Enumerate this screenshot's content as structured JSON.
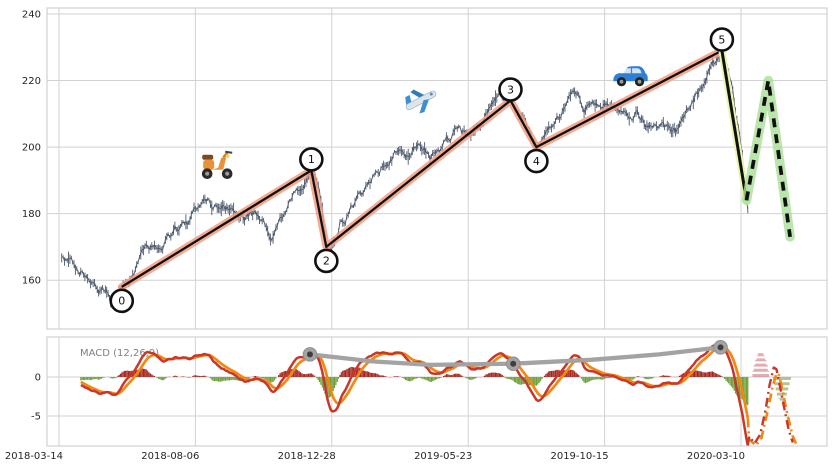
{
  "chart_data": {
    "type": "line",
    "title": "",
    "description": "Price chart with Elliott-wave style numbered pivots 0-5, salmon trend channel, green dashed forecast zigzag, vehicle emojis, and a MACD(12,26,9) subpanel with red MACD line, orange signal line, red/green histogram, gray peak-connector line with dots, and dash-dot forecast.",
    "x_axis": {
      "tick_labels": [
        "2018-03-14",
        "2018-08-06",
        "2018-12-28",
        "2019-05-23",
        "2019-10-15",
        "2020-03-10"
      ],
      "tick_days": [
        0,
        100,
        200,
        300,
        400,
        500
      ]
    },
    "main_y_ticks": [
      240,
      220,
      200,
      180,
      160
    ],
    "main_ylim": [
      145,
      241
    ],
    "macd": {
      "label": "MACD (12,26,9)",
      "params": [
        12,
        26,
        9
      ],
      "y_ticks": [
        0,
        -5
      ],
      "ylim": [
        -8.9,
        5
      ]
    },
    "wave_points": [
      {
        "label": "0",
        "day": 46,
        "value": 158,
        "kind": "trough"
      },
      {
        "label": "1",
        "day": 185,
        "value": 193,
        "kind": "peak"
      },
      {
        "label": "2",
        "day": 196,
        "value": 170,
        "kind": "trough"
      },
      {
        "label": "3",
        "day": 331,
        "value": 214,
        "kind": "peak"
      },
      {
        "label": "4",
        "day": 350,
        "value": 200,
        "kind": "trough"
      },
      {
        "label": "5",
        "day": 486,
        "value": 229,
        "kind": "peak"
      }
    ],
    "forecast_solid": [
      [
        486,
        229
      ],
      [
        504,
        184
      ]
    ],
    "forecast_dashed": [
      [
        504,
        184
      ],
      [
        520,
        220
      ],
      [
        536,
        173
      ]
    ],
    "price_anchors": [
      [
        2,
        166
      ],
      [
        8,
        164
      ],
      [
        14,
        162
      ],
      [
        20,
        161
      ],
      [
        26,
        159
      ],
      [
        32,
        158
      ],
      [
        38,
        156
      ],
      [
        42,
        155.5
      ],
      [
        46,
        158
      ],
      [
        52,
        162
      ],
      [
        58,
        166
      ],
      [
        63,
        170
      ],
      [
        75,
        171
      ],
      [
        85,
        174
      ],
      [
        95,
        176
      ],
      [
        103,
        183
      ],
      [
        107,
        184
      ],
      [
        114,
        182.5
      ],
      [
        125,
        182
      ],
      [
        136,
        179
      ],
      [
        144,
        181
      ],
      [
        149,
        177.5
      ],
      [
        156,
        173
      ],
      [
        161,
        176
      ],
      [
        167,
        183
      ],
      [
        173,
        186
      ],
      [
        180,
        189
      ],
      [
        185,
        193
      ],
      [
        190,
        187
      ],
      [
        193,
        180
      ],
      [
        196,
        170
      ],
      [
        199,
        167
      ],
      [
        203,
        172
      ],
      [
        206,
        178
      ],
      [
        210,
        180
      ],
      [
        216,
        184
      ],
      [
        221,
        186
      ],
      [
        228,
        190
      ],
      [
        235,
        193
      ],
      [
        242,
        196
      ],
      [
        248,
        199
      ],
      [
        252,
        201
      ],
      [
        258,
        199
      ],
      [
        263,
        201
      ],
      [
        268,
        199
      ],
      [
        272,
        197
      ],
      [
        278,
        198
      ],
      [
        284,
        202
      ],
      [
        290,
        204
      ],
      [
        296,
        203
      ],
      [
        302,
        204
      ],
      [
        309,
        207
      ],
      [
        315,
        210
      ],
      [
        322,
        212
      ],
      [
        328,
        214
      ],
      [
        331,
        215
      ],
      [
        335,
        211
      ],
      [
        340,
        207
      ],
      [
        345,
        203
      ],
      [
        350,
        199
      ],
      [
        355,
        203
      ],
      [
        360,
        207
      ],
      [
        367,
        210
      ],
      [
        373,
        213
      ],
      [
        379,
        215
      ],
      [
        385,
        212
      ],
      [
        390,
        215
      ],
      [
        396,
        215
      ],
      [
        402,
        213
      ],
      [
        408,
        211
      ],
      [
        414,
        210
      ],
      [
        419,
        209
      ],
      [
        424,
        211
      ],
      [
        429,
        208
      ],
      [
        435,
        207
      ],
      [
        441,
        206
      ],
      [
        447,
        204
      ],
      [
        452,
        204
      ],
      [
        457,
        207
      ],
      [
        462,
        211
      ],
      [
        468,
        216
      ],
      [
        474,
        220
      ],
      [
        480,
        224
      ],
      [
        486,
        227
      ],
      [
        490,
        222
      ],
      [
        494,
        215
      ],
      [
        498,
        205
      ],
      [
        501,
        195
      ],
      [
        503,
        187
      ],
      [
        505,
        180
      ]
    ],
    "price_start_day": 2,
    "price_end_day": 505,
    "macd_trend_line": [
      [
        184,
        2.9
      ],
      [
        230,
        2.0
      ],
      [
        272,
        1.55
      ],
      [
        333,
        1.7
      ],
      [
        390,
        2.2
      ],
      [
        440,
        2.9
      ],
      [
        485,
        3.8
      ]
    ],
    "macd_trend_dots": [
      [
        184,
        2.9
      ],
      [
        333,
        1.7
      ],
      [
        485,
        3.8
      ]
    ],
    "macd_forecast_red": [
      [
        506,
        -7.6
      ],
      [
        510,
        -8.5
      ],
      [
        514,
        -7.4
      ],
      [
        518,
        -4.2
      ],
      [
        521,
        -1.0
      ],
      [
        524,
        1.2
      ],
      [
        526,
        1.0
      ],
      [
        529,
        -1.6
      ],
      [
        532,
        -4.2
      ],
      [
        535,
        -6.8
      ],
      [
        538,
        -8.4
      ]
    ],
    "macd_forecast_orange": [
      [
        506,
        -8.0
      ],
      [
        511,
        -8.9
      ],
      [
        515,
        -7.8
      ],
      [
        519,
        -4.8
      ],
      [
        523,
        -1.4
      ],
      [
        526,
        0.5
      ],
      [
        528,
        0.2
      ],
      [
        531,
        -2.2
      ],
      [
        534,
        -4.8
      ],
      [
        538,
        -7.6
      ],
      [
        541,
        -8.9
      ]
    ],
    "macd_forecast_hist": {
      "positive": {
        "start": 508,
        "end": 521,
        "peak": 3.3
      },
      "negative": {
        "start": 523,
        "end": 537,
        "peak": 3.1
      }
    },
    "icons": [
      {
        "name": "scooter-icon",
        "day": 116,
        "value": 195
      },
      {
        "name": "airplane-icon",
        "day": 265,
        "value": 214
      },
      {
        "name": "car-icon",
        "day": 419,
        "value": 221
      }
    ]
  },
  "colors": {
    "price": "#4e5a6e",
    "wave_glow": "#f29b80",
    "wave_line": "#111111",
    "forecast_solid_glow": "#e9f6ae",
    "forecast_dash_glow": "#a9e099",
    "macd_line": "#c8372a",
    "signal_line": "#f2880f",
    "hist_pos": "#a3271e",
    "hist_neg": "#6f9e3d",
    "trend_gray": "#a3a3a3",
    "trend_dot_inner": "#3f3f3f",
    "grid": "#d2d2d2",
    "frame": "#c9c9c9",
    "tick_text": "#262626",
    "macd_label_text": "#7f7f7f",
    "forecast_hist_pos": "#c76a70",
    "forecast_hist_neg": "#8d9a4a"
  }
}
